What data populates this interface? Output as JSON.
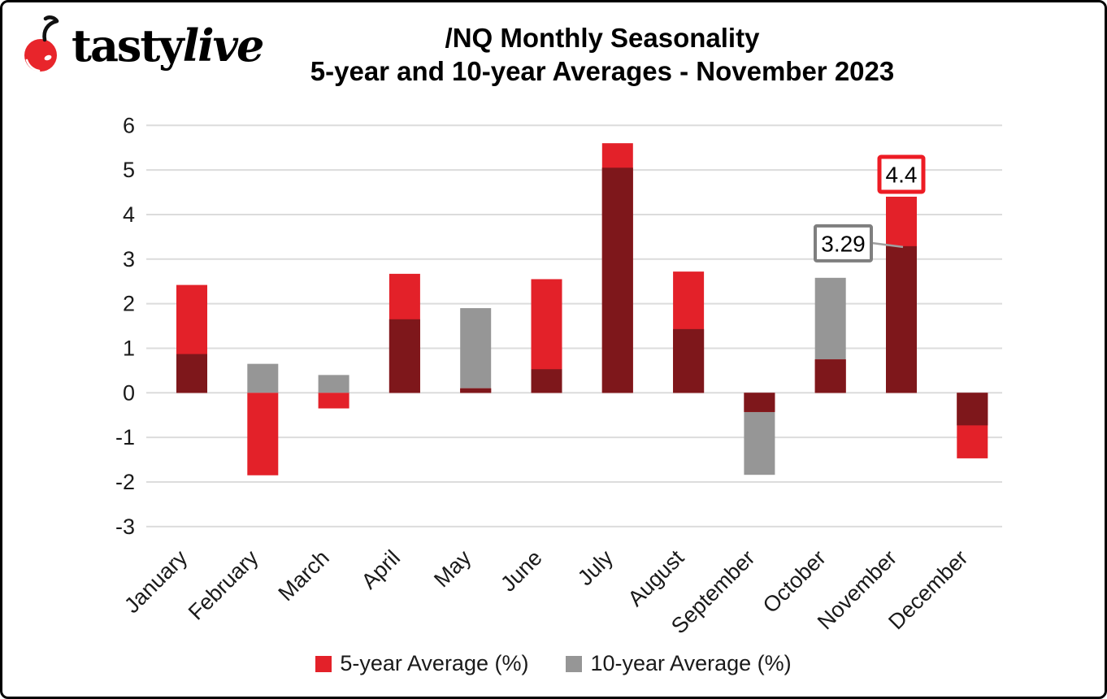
{
  "logo": {
    "tasty": "tasty",
    "live": "live",
    "cherry_color": "#e8252b"
  },
  "header": {
    "title_line1": "/NQ Monthly Seasonality",
    "title_line2": "5-year and 10-year Averages - November 2023"
  },
  "chart_data": {
    "type": "bar",
    "overlay_bars": true,
    "title": "/NQ Monthly Seasonality 5-year and 10-year Averages - November 2023",
    "categories": [
      "January",
      "February",
      "March",
      "April",
      "May",
      "June",
      "July",
      "August",
      "September",
      "October",
      "November",
      "December"
    ],
    "series": [
      {
        "name": "5-year Average (%)",
        "color": "#e32129",
        "values": [
          2.42,
          -1.85,
          -0.35,
          2.67,
          0.1,
          2.55,
          5.6,
          2.72,
          -0.43,
          0.75,
          4.4,
          -1.47
        ]
      },
      {
        "name": "10-year Average (%)",
        "color": "#969696",
        "values": [
          0.87,
          0.65,
          0.4,
          1.65,
          1.9,
          0.53,
          5.05,
          1.43,
          -1.84,
          2.58,
          3.29,
          -0.73
        ]
      }
    ],
    "overlap_color": "#7e171b",
    "yticks": [
      6,
      5,
      4,
      3,
      2,
      1,
      0,
      -1,
      -2,
      -3
    ],
    "ylim": [
      -3,
      6
    ],
    "grid": true,
    "gridline_color": "#dcdcdc",
    "legend_position": "bottom",
    "annotations": [
      {
        "text": "3.29",
        "month_index": 10,
        "value": 3.29,
        "style": "callout-left",
        "border_color": "#7f7f7f",
        "leader_color": "#a0a0a0"
      },
      {
        "text": "4.4",
        "month_index": 10,
        "value": 4.4,
        "style": "box-above",
        "border_color": "#ed1c24"
      }
    ]
  },
  "legend": {
    "items": [
      {
        "label": "5-year Average (%)",
        "color": "#e32129"
      },
      {
        "label": "10-year Average (%)",
        "color": "#969696"
      }
    ]
  }
}
